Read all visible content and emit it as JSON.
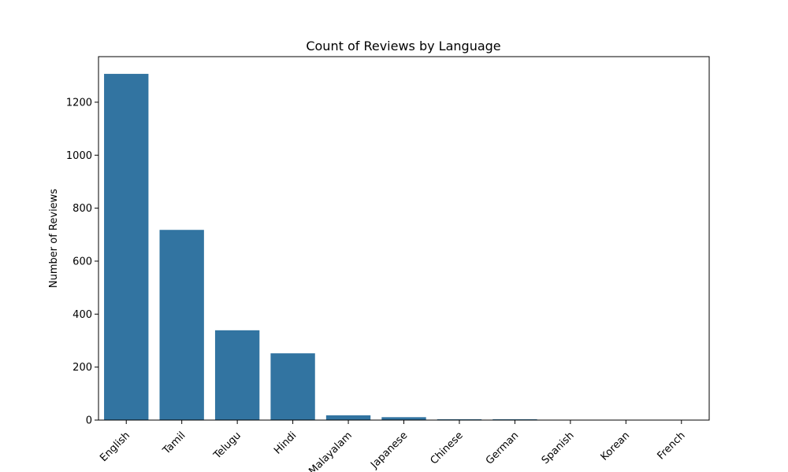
{
  "chart_data": {
    "type": "bar",
    "title": "Count of Reviews by Language",
    "xlabel": "",
    "ylabel": "Number of Reviews",
    "categories": [
      "English",
      "Tamil",
      "Telugu",
      "Hindi",
      "Malayalam",
      "Japanese",
      "Chinese",
      "German",
      "Spanish",
      "Korean",
      "French"
    ],
    "values": [
      1307,
      718,
      339,
      252,
      18,
      11,
      3,
      3,
      1,
      1,
      1
    ],
    "ylim": [
      0,
      1372
    ],
    "yticks": [
      0,
      200,
      400,
      600,
      800,
      1000,
      1200
    ],
    "bar_color": "#3274a1",
    "grid": false,
    "legend": "none"
  }
}
